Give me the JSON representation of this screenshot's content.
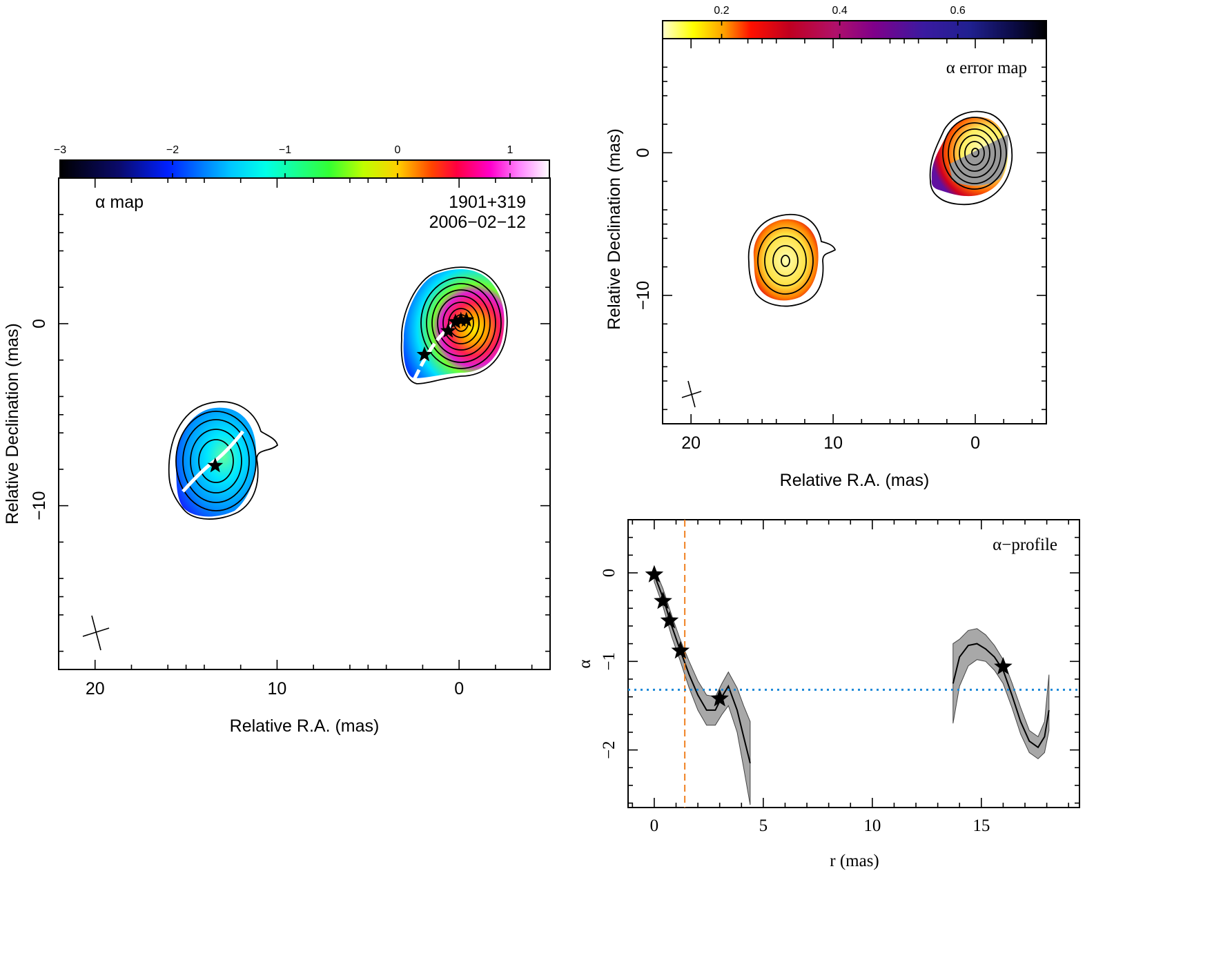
{
  "alpha_map": {
    "label": "α map",
    "source": "1901+319",
    "date": "2006−02−12",
    "xlabel": "Relative R.A. (mas)",
    "ylabel": "Relative Declination (mas)",
    "colorbar": {
      "ticks": [
        "−3",
        "−2",
        "−1",
        "0",
        "1"
      ],
      "tick_values": [
        -3,
        -2,
        -1,
        0,
        1
      ],
      "range": [
        -3.0,
        1.35
      ],
      "colormap": "black-blue-cyan-green-yellow-red-magenta-white"
    },
    "x_ticks": [
      "20",
      "10",
      "0"
    ],
    "x_tick_values": [
      20,
      10,
      0
    ],
    "y_ticks": [
      "0",
      "−10"
    ],
    "y_tick_values": [
      0,
      -10
    ],
    "xlim": [
      22,
      -5
    ],
    "ylim": [
      -19,
      8
    ],
    "stars": [
      [
        1.9,
        -1.7
      ],
      [
        0.6,
        -0.4
      ],
      [
        0.2,
        0.1
      ],
      [
        -0.1,
        0.2
      ],
      [
        -0.4,
        0.2
      ],
      [
        13.4,
        -7.8
      ]
    ]
  },
  "error_map": {
    "label": "α error map",
    "xlabel": "Relative R.A. (mas)",
    "ylabel": "Relative Declination (mas)",
    "colorbar": {
      "ticks": [
        "0.2",
        "0.4",
        "0.6"
      ],
      "tick_values": [
        0.2,
        0.4,
        0.6
      ],
      "range": [
        0.1,
        0.75
      ],
      "colormap": "yellow-red-purple-blue-black"
    },
    "x_ticks": [
      "20",
      "10",
      "0"
    ],
    "x_tick_values": [
      20,
      10,
      0
    ],
    "y_ticks": [
      "0",
      "−10"
    ],
    "y_tick_values": [
      0,
      -10
    ],
    "xlim": [
      22,
      -5
    ],
    "ylim": [
      -19,
      8
    ]
  },
  "chart_data": {
    "type": "line",
    "title": "α−profile",
    "xlabel": "r (mas)",
    "ylabel": "α",
    "xlim": [
      -1.2,
      19.5
    ],
    "ylim": [
      -2.65,
      0.6
    ],
    "x_ticks": [
      "0",
      "5",
      "10",
      "15"
    ],
    "x_tick_values": [
      0,
      5,
      10,
      15
    ],
    "y_ticks": [
      "0",
      "−1",
      "−2"
    ],
    "y_tick_values": [
      0,
      -1,
      -2
    ],
    "reference_lines": {
      "vertical_x": 1.4,
      "horizontal_y": -1.32
    },
    "series": [
      {
        "x": [
          0,
          0.4,
          0.8,
          1.2,
          1.6,
          2.0,
          2.4,
          2.8,
          3.1,
          3.4,
          3.8,
          4.1,
          4.4
        ],
        "y": [
          -0.02,
          -0.28,
          -0.6,
          -0.88,
          -1.15,
          -1.38,
          -1.55,
          -1.55,
          -1.4,
          -1.28,
          -1.55,
          -1.85,
          -2.15
        ],
        "lower": [
          -0.1,
          -0.38,
          -0.72,
          -1.0,
          -1.3,
          -1.55,
          -1.72,
          -1.72,
          -1.6,
          -1.5,
          -1.8,
          -2.2,
          -2.62
        ],
        "upper": [
          0.06,
          -0.18,
          -0.48,
          -0.76,
          -1.0,
          -1.22,
          -1.38,
          -1.4,
          -1.25,
          -1.12,
          -1.3,
          -1.5,
          -1.68
        ]
      },
      {
        "x": [
          13.7,
          14.0,
          14.4,
          14.8,
          15.2,
          15.6,
          16.0,
          16.4,
          16.8,
          17.2,
          17.6,
          17.9,
          18.1
        ],
        "y": [
          -1.25,
          -0.95,
          -0.82,
          -0.8,
          -0.86,
          -0.95,
          -1.1,
          -1.38,
          -1.68,
          -1.9,
          -1.97,
          -1.85,
          -1.55
        ],
        "lower": [
          -1.7,
          -1.28,
          -1.05,
          -0.98,
          -1.0,
          -1.1,
          -1.25,
          -1.52,
          -1.82,
          -2.03,
          -2.1,
          -2.03,
          -1.78
        ],
        "upper": [
          -0.8,
          -0.75,
          -0.65,
          -0.63,
          -0.7,
          -0.82,
          -0.98,
          -1.24,
          -1.52,
          -1.78,
          -1.85,
          -1.68,
          -1.15
        ]
      }
    ],
    "stars": [
      [
        0,
        -0.02
      ],
      [
        0.4,
        -0.32
      ],
      [
        0.7,
        -0.54
      ],
      [
        1.2,
        -0.88
      ],
      [
        3.0,
        -1.42
      ],
      [
        16.0,
        -1.06
      ]
    ]
  }
}
